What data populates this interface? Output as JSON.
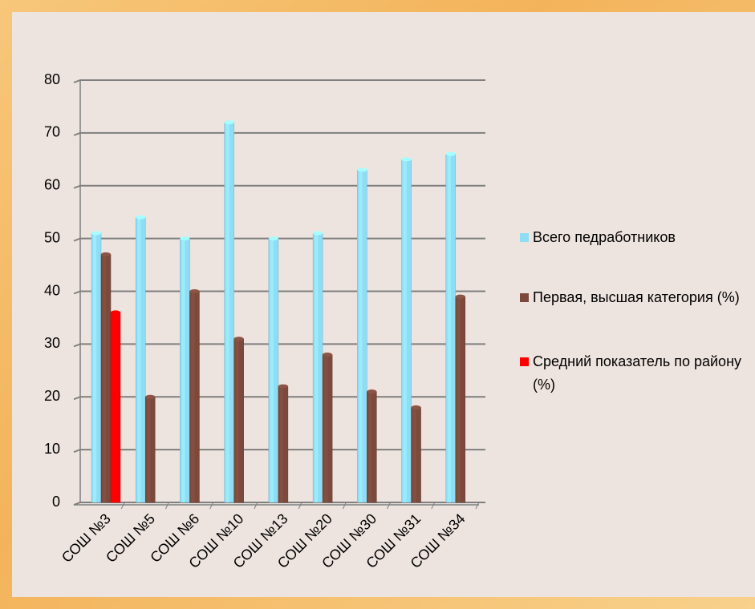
{
  "chart_data": {
    "type": "bar",
    "categories": [
      "СОШ №3",
      "СОШ №5",
      "СОШ №6",
      "СОШ №10",
      "СОШ №13",
      "СОШ №20",
      "СОШ №30",
      "СОШ №31",
      "СОШ №34"
    ],
    "series": [
      {
        "name": "Всего педработников",
        "color": "#8fdcf5",
        "values": [
          51,
          54,
          50,
          72,
          50,
          51,
          63,
          65,
          66
        ]
      },
      {
        "name": "Первая, высшая категория (%)",
        "color": "#7b4a3c",
        "values": [
          47,
          20,
          40,
          31,
          22,
          28,
          21,
          18,
          39
        ]
      },
      {
        "name": "Средний показатель по району (%)",
        "color": "#ff0000",
        "values": [
          36,
          null,
          null,
          null,
          null,
          null,
          null,
          null,
          null
        ]
      }
    ],
    "ylim": [
      0,
      80
    ],
    "yticks": [
      0,
      10,
      20,
      30,
      40,
      50,
      60,
      70,
      80
    ],
    "grid": true,
    "legend": "right"
  }
}
